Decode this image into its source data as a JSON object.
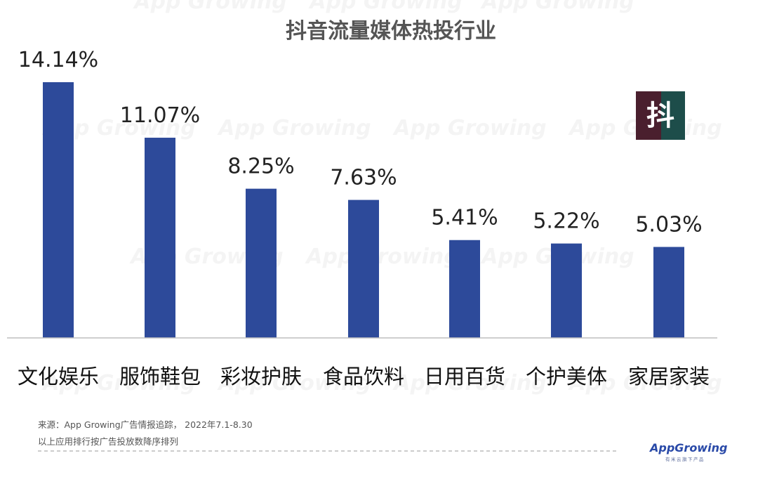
{
  "chart_data": {
    "type": "bar",
    "title": "抖音流量媒体热投行业",
    "categories": [
      "文化娱乐",
      "服饰鞋包",
      "彩妆护肤",
      "食品饮料",
      "日用百货",
      "个护美体",
      "家居家装"
    ],
    "values": [
      14.14,
      11.07,
      8.25,
      7.63,
      5.41,
      5.22,
      5.03
    ],
    "value_labels": [
      "14.14%",
      "11.07%",
      "8.25%",
      "7.63%",
      "5.41%",
      "5.22%",
      "5.03%"
    ],
    "unit": "%",
    "ylim": [
      0,
      14.14
    ],
    "grid": false,
    "legend": "none",
    "bar_color": "#2d4a9a"
  },
  "badge": {
    "char": "抖",
    "colors": [
      "#4a1f2e",
      "#1d4d4a"
    ]
  },
  "watermark": {
    "text": "App Growing"
  },
  "footer": {
    "source": "来源：App Growing广告情报追踪， 2022年7.1-8.30",
    "note": "以上应用排行按广告投放数降序排列"
  },
  "logo": {
    "brand": "AppGrowing",
    "sub": "有米云旗下产品"
  }
}
